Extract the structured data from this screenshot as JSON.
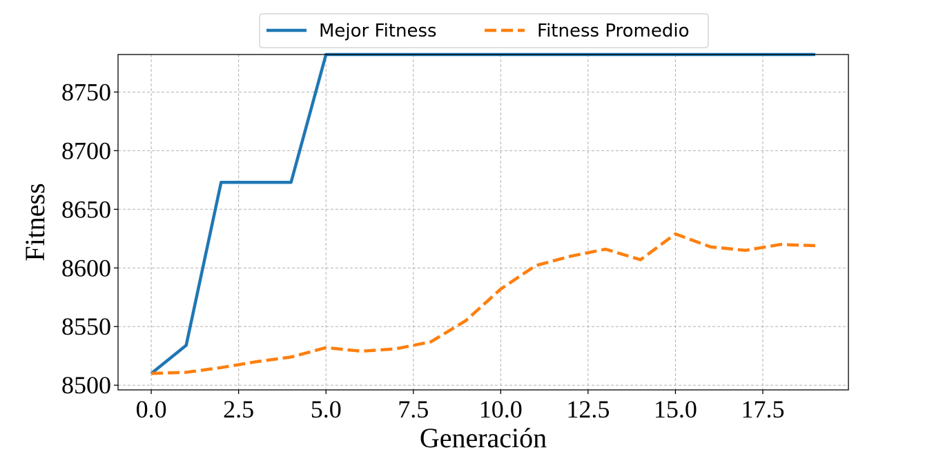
{
  "chart_data": {
    "type": "line",
    "title": "",
    "xlabel": "Generación",
    "ylabel": "Fitness",
    "xlim": [
      -0.95,
      19.95
    ],
    "ylim": [
      8496,
      8782
    ],
    "xticks": [
      "0.0",
      "2.5",
      "5.0",
      "7.5",
      "10.0",
      "12.5",
      "15.0",
      "17.5"
    ],
    "yticks": [
      "8500",
      "8550",
      "8600",
      "8650",
      "8700",
      "8750"
    ],
    "grid": true,
    "legend_position": "top-center",
    "x": [
      0,
      1,
      2,
      3,
      4,
      5,
      6,
      7,
      8,
      9,
      10,
      11,
      12,
      13,
      14,
      15,
      16,
      17,
      18,
      19
    ],
    "series": [
      {
        "name": "Mejor Fitness",
        "color": "#1f77b4",
        "style": "solid",
        "values": [
          8510,
          8534,
          8673,
          8673,
          8673,
          8782,
          8782,
          8782,
          8782,
          8782,
          8782,
          8782,
          8782,
          8782,
          8782,
          8782,
          8782,
          8782,
          8782,
          8782
        ]
      },
      {
        "name": "Fitness Promedio",
        "color": "#ff7f0e",
        "style": "dashed",
        "values": [
          8510,
          8511,
          8515,
          8520,
          8524,
          8532,
          8529,
          8531,
          8537,
          8555,
          8582,
          8602,
          8610,
          8616,
          8607,
          8629,
          8618,
          8615,
          8620,
          8619
        ]
      }
    ]
  }
}
